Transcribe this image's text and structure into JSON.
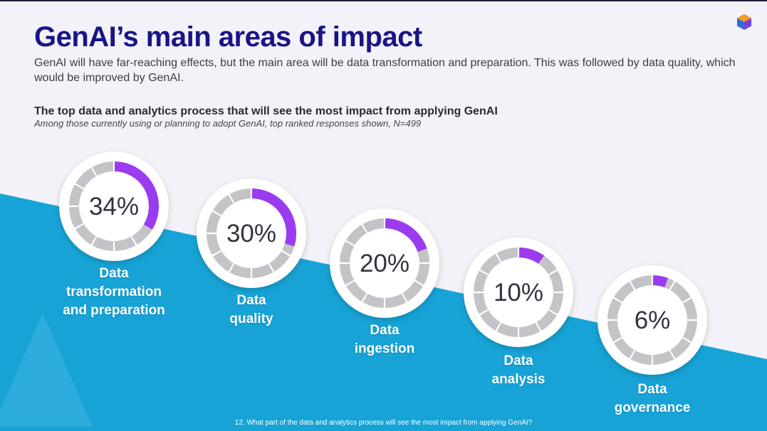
{
  "slide": {
    "title": "GenAI’s main areas of impact",
    "subtitle": "GenAI will have far-reaching effects, but the main area will be data transformation and preparation. This was followed by data quality, which would be improved by GenAI.",
    "footnote": "12. What part of the data and analytics process will see the most impact from applying GenAI?"
  },
  "colors": {
    "accent": "#9b3bf0",
    "ring_track": "#c4c4c8",
    "title": "#1a1487",
    "background_blue": "#17a3d6"
  },
  "chart_data": {
    "type": "donut",
    "title": "The top data and analytics process that will see the most impact from applying GenAI",
    "subtitle": "Among those currently using or planning to adopt GenAI, top ranked responses shown, N=499",
    "categories": [
      "Data transformation and preparation",
      "Data quality",
      "Data ingestion",
      "Data analysis",
      "Data governance"
    ],
    "values": [
      34,
      30,
      20,
      10,
      6
    ],
    "value_labels": [
      "34%",
      "30%",
      "20%",
      "10%",
      "6%"
    ],
    "label_lines": [
      [
        "Data",
        "transformation",
        "and preparation"
      ],
      [
        "Data",
        "quality"
      ],
      [
        "Data",
        "ingestion"
      ],
      [
        "Data",
        "analysis"
      ],
      [
        "Data",
        "governance"
      ]
    ],
    "max": 100
  }
}
